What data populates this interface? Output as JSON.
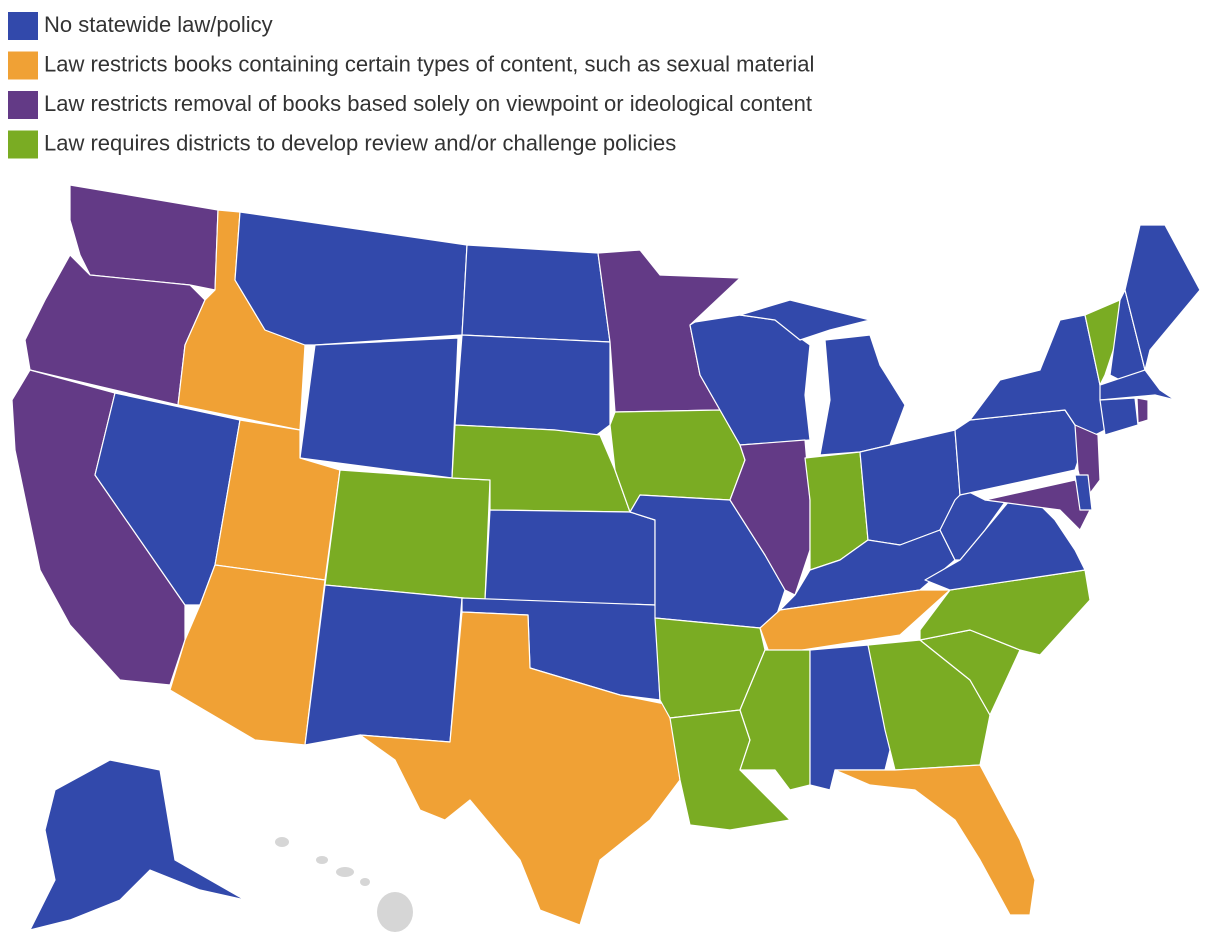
{
  "legend": {
    "items": [
      {
        "label": "No statewide law/policy",
        "color": "#3249ab"
      },
      {
        "label": "Law restricts books containing certain types of content, such as sexual material",
        "color": "#f0a135"
      },
      {
        "label": "Law restricts removal of books based solely on viewpoint or ideological content",
        "color": "#633a86"
      },
      {
        "label": "Law requires districts to develop review and/or challenge policies",
        "color": "#7aac23"
      }
    ]
  }
}
